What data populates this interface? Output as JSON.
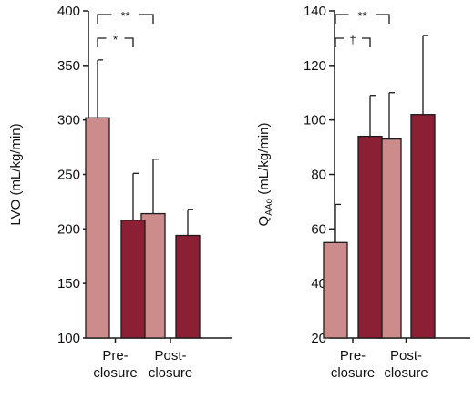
{
  "colors": {
    "pre_fill": "#cc8c8c",
    "post_fill": "#8b2035",
    "stroke": "#1a1a1a"
  },
  "chart_data": [
    {
      "type": "bar",
      "ylabel": "LVO (mL/kg/min)",
      "ylabel_sub": "",
      "ylabel_after": "",
      "ylim": [
        100,
        400
      ],
      "yticks": [
        100,
        150,
        200,
        250,
        300,
        350,
        400
      ],
      "categories": [
        [
          "Pre-",
          "closure"
        ],
        [
          "Post-",
          "closure"
        ]
      ],
      "series": [
        {
          "values": [
            302,
            214
          ],
          "errors": [
            53,
            50
          ],
          "color": "#cc8c8c"
        },
        {
          "values": [
            208,
            194
          ],
          "errors": [
            43,
            24
          ],
          "color": "#8b2035"
        }
      ],
      "annotations": [
        {
          "label": "*",
          "from": {
            "category": 0,
            "series": 0
          },
          "to": {
            "category": 0,
            "series": 1
          },
          "level": "low"
        },
        {
          "label": "**",
          "from": {
            "category": 0,
            "series": 0
          },
          "to": {
            "category": 1,
            "series": 0
          },
          "level": "high"
        }
      ]
    },
    {
      "type": "bar",
      "ylabel": "Q",
      "ylabel_sub": "AAo",
      "ylabel_after": " (mL/kg/min)",
      "ylim": [
        20,
        140
      ],
      "yticks": [
        20,
        40,
        60,
        80,
        100,
        120,
        140
      ],
      "categories": [
        [
          "Pre-",
          "closure"
        ],
        [
          "Post-",
          "closure"
        ]
      ],
      "series": [
        {
          "values": [
            55,
            93
          ],
          "errors": [
            14,
            17
          ],
          "color": "#cc8c8c"
        },
        {
          "values": [
            94,
            102
          ],
          "errors": [
            15,
            29
          ],
          "color": "#8b2035"
        }
      ],
      "annotations": [
        {
          "label": "†",
          "from": {
            "category": 0,
            "series": 0
          },
          "to": {
            "category": 0,
            "series": 1
          },
          "level": "low"
        },
        {
          "label": "**",
          "from": {
            "category": 0,
            "series": 0
          },
          "to": {
            "category": 1,
            "series": 0
          },
          "level": "high"
        }
      ]
    }
  ]
}
